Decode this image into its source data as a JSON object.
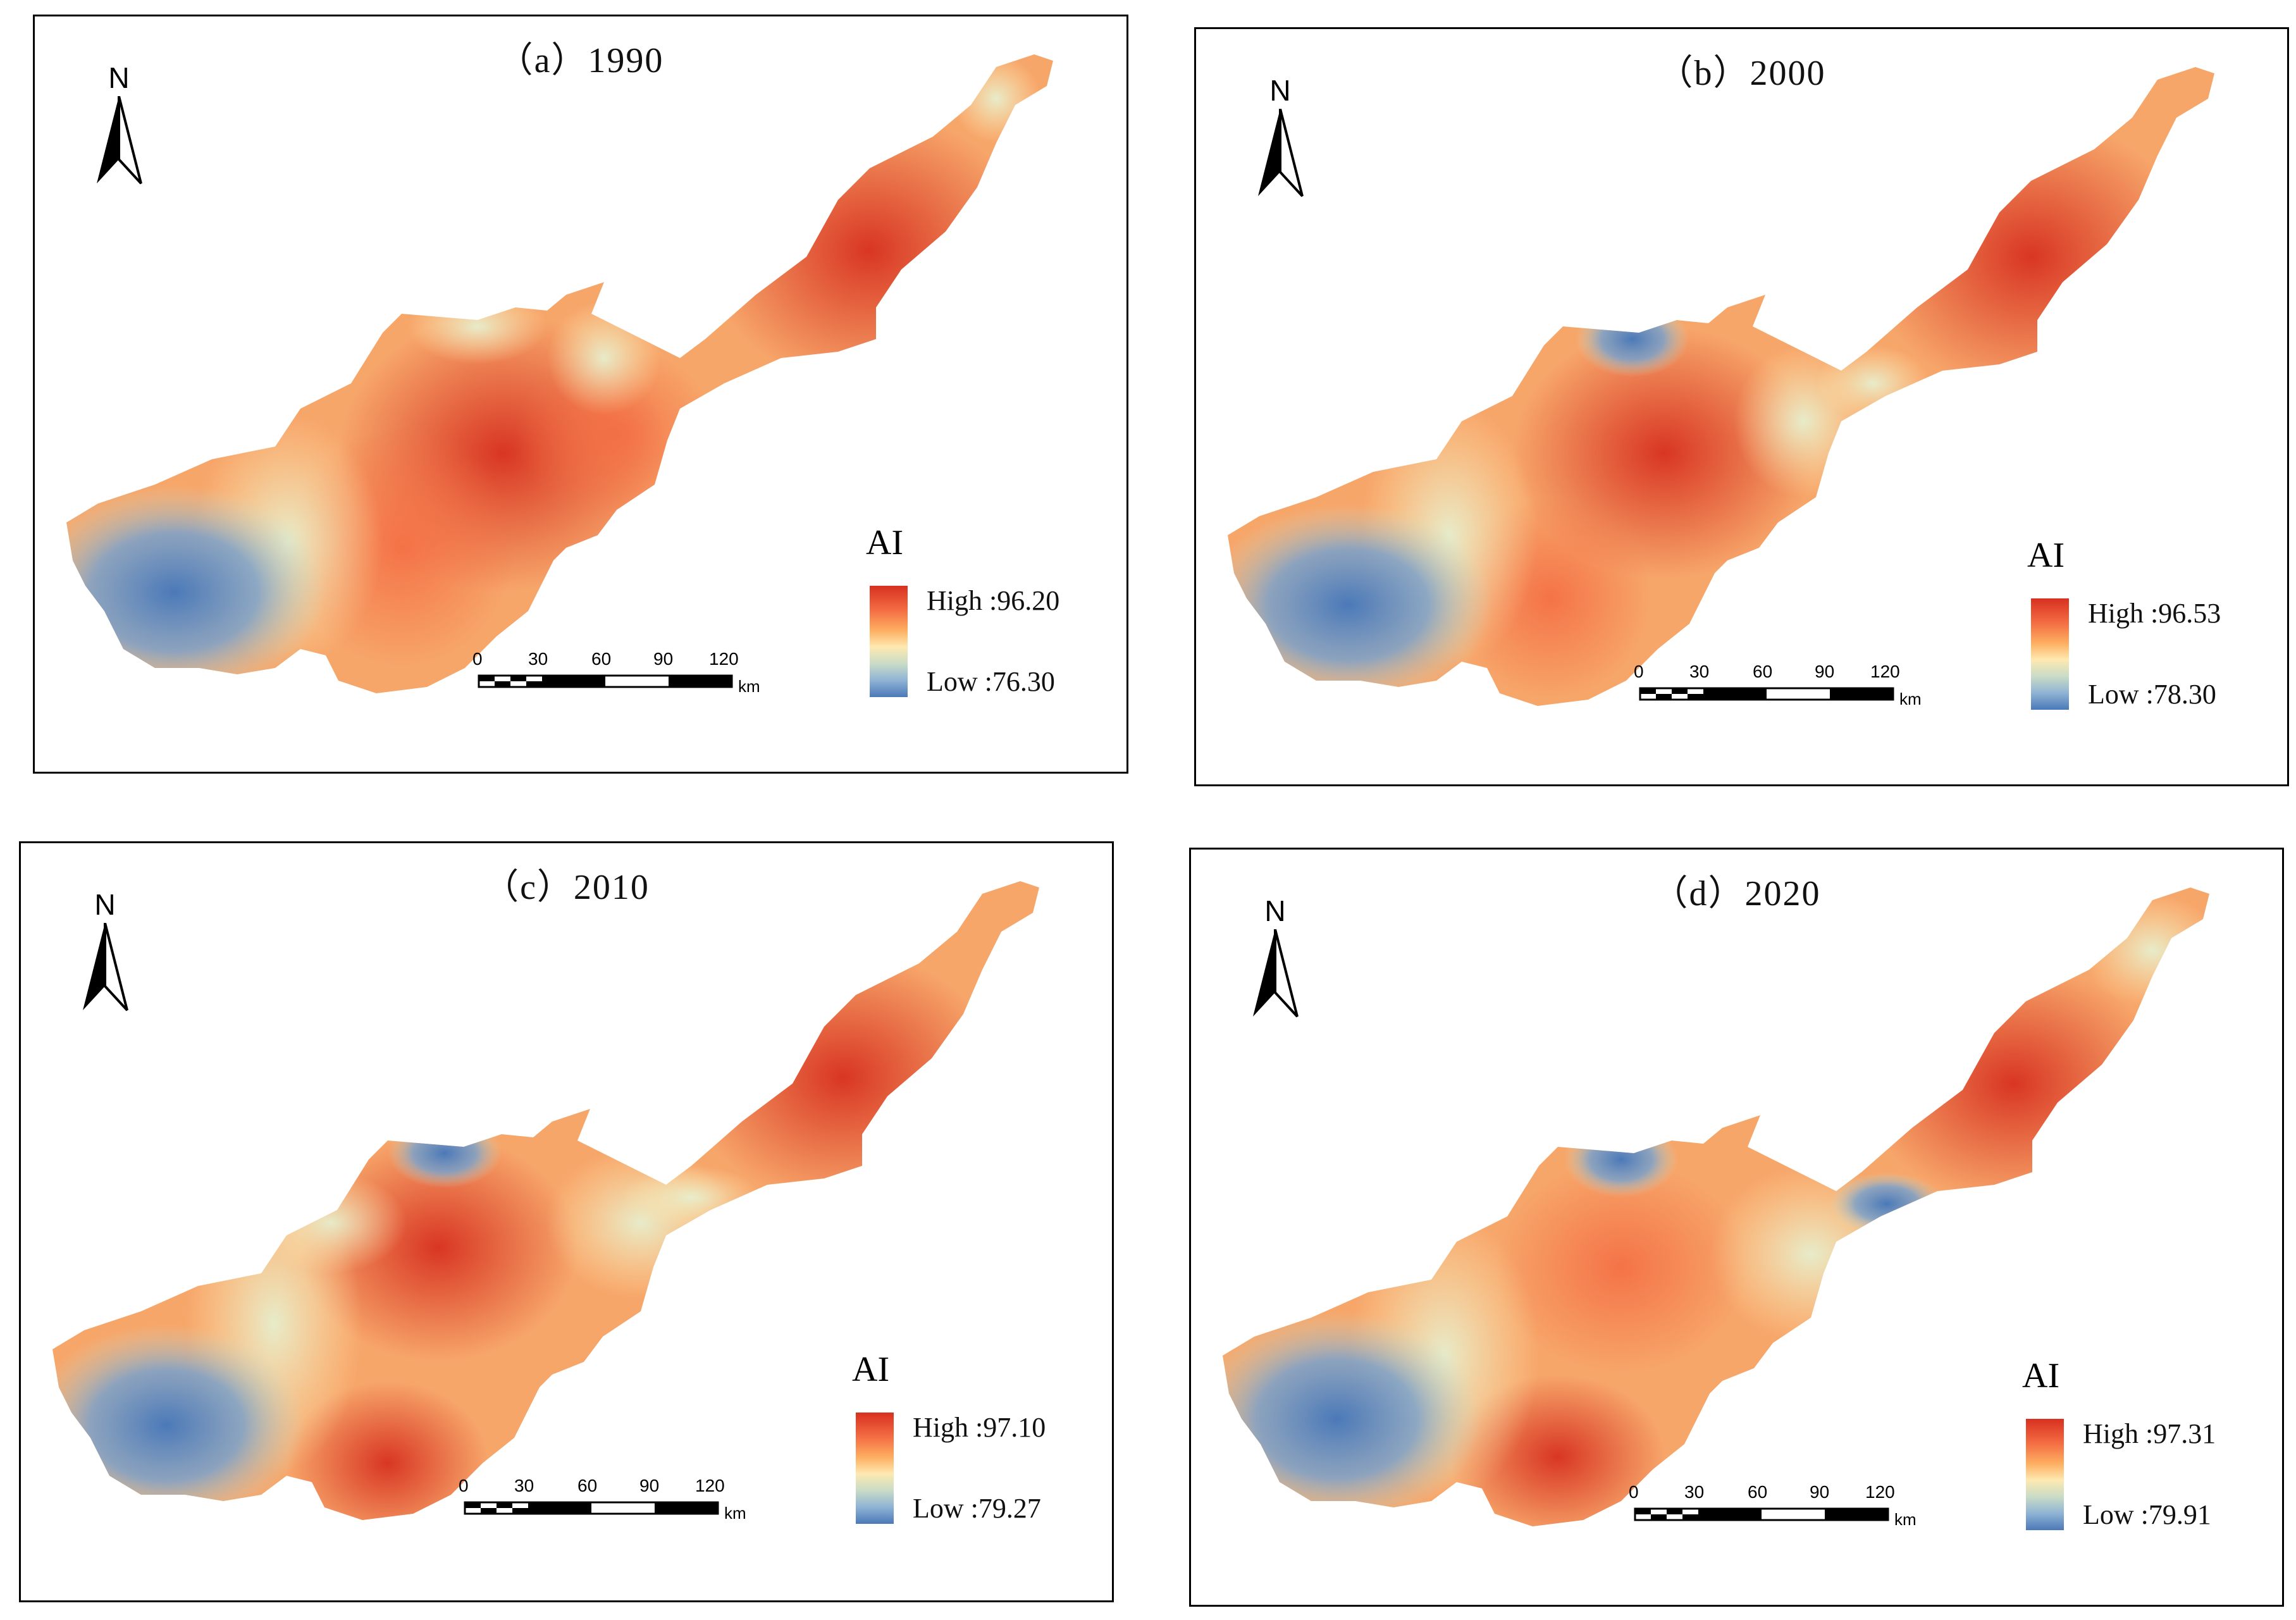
{
  "colors": {
    "high": "#d7301f",
    "mid": "#fee9b0",
    "low": "#4b79b8",
    "frame": "#000000"
  },
  "north_label": "N",
  "legend_title": "AI",
  "scale": {
    "ticks": [
      "0",
      "30",
      "60",
      "90",
      "120"
    ],
    "unit": "km"
  },
  "panels": [
    {
      "title": "（a）1990",
      "high": "High :96.20",
      "low": "Low :76.30"
    },
    {
      "title": "（b）2000",
      "high": "High :96.53",
      "low": "Low :78.30"
    },
    {
      "title": "（c）2010",
      "high": "High :97.10",
      "low": "Low :79.27"
    },
    {
      "title": "（d）2020",
      "high": "High :97.31",
      "low": "Low :79.91"
    }
  ]
}
